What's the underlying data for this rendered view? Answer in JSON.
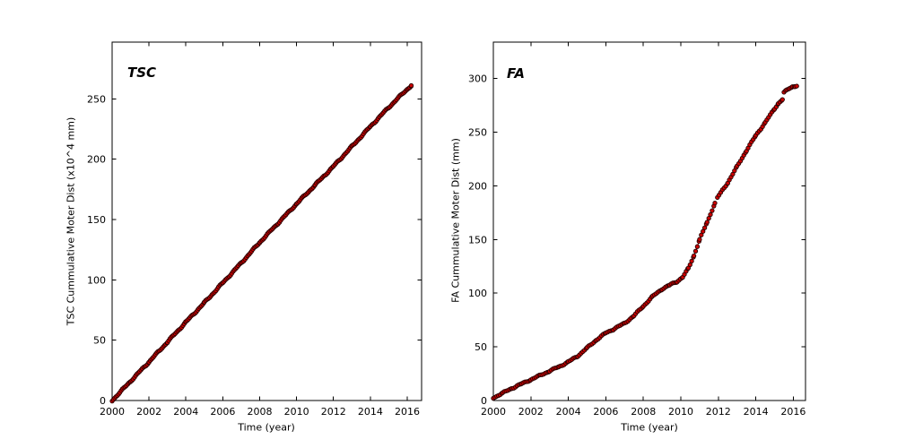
{
  "figure": {
    "background": "#ffffff",
    "text_color": "#000000"
  },
  "chart_data": [
    {
      "id": "tsc",
      "type": "scatter",
      "title": "TSC",
      "xlabel": "Time (year)",
      "ylabel": "TSC Cummulative Moter Dist (x10^4 mm)",
      "xlim": [
        2000,
        2016.78
      ],
      "ylim": [
        0,
        297
      ],
      "xticks": [
        2000,
        2002,
        2004,
        2006,
        2008,
        2010,
        2012,
        2014,
        2016
      ],
      "yticks": [
        0,
        50,
        100,
        150,
        200,
        250
      ],
      "grid": false,
      "legend": null,
      "marker": {
        "fill": "#cc0000",
        "edge": "#260000",
        "line": "#aa0000",
        "radius": 2.2
      },
      "point_spacing_years": 0.07,
      "wiggle_amplitude": 0.75,
      "segments": [
        [
          [
            2000,
            0
          ],
          [
            2001,
            16
          ],
          [
            2002,
            32
          ],
          [
            2003,
            48.5
          ],
          [
            2004,
            65
          ],
          [
            2005,
            81
          ],
          [
            2006,
            97.5
          ],
          [
            2007,
            114
          ],
          [
            2008,
            131
          ],
          [
            2009,
            147
          ],
          [
            2010,
            163
          ],
          [
            2011,
            178.5
          ],
          [
            2012,
            194
          ],
          [
            2013,
            210.5
          ],
          [
            2014,
            227
          ],
          [
            2015,
            243
          ],
          [
            2016,
            258
          ],
          [
            2016.22,
            261
          ]
        ]
      ]
    },
    {
      "id": "fa",
      "type": "scatter",
      "title": "FA",
      "xlabel": "Time (year)",
      "ylabel": "FA Cummulative Moter Dist (mm)",
      "xlim": [
        2000,
        2016.65
      ],
      "ylim": [
        0,
        334
      ],
      "xticks": [
        2000,
        2002,
        2004,
        2006,
        2008,
        2010,
        2012,
        2014,
        2016
      ],
      "yticks": [
        0,
        50,
        100,
        150,
        200,
        250,
        300
      ],
      "grid": false,
      "legend": null,
      "marker": {
        "fill": "#cc0000",
        "edge": "#260000",
        "line": "#aa0000",
        "radius": 2.2
      },
      "point_spacing_years": 0.09,
      "wiggle_amplitude": 0.7,
      "segments": [
        [
          [
            2000,
            2.5
          ],
          [
            2000.5,
            7
          ],
          [
            2001,
            11.5
          ],
          [
            2001.5,
            15.5
          ],
          [
            2002,
            19.5
          ],
          [
            2002.5,
            23.5
          ],
          [
            2003,
            27.5
          ],
          [
            2003.5,
            31.5
          ],
          [
            2004,
            36
          ],
          [
            2004.5,
            41.5
          ],
          [
            2005,
            49
          ],
          [
            2005.5,
            56.5
          ],
          [
            2006,
            63
          ],
          [
            2006.4,
            66.5
          ],
          [
            2007,
            72
          ],
          [
            2007.5,
            79
          ],
          [
            2008,
            88
          ],
          [
            2008.5,
            97
          ],
          [
            2009,
            104
          ],
          [
            2009.4,
            107.5
          ],
          [
            2009.8,
            111
          ],
          [
            2010.1,
            115
          ],
          [
            2010.4,
            123
          ],
          [
            2010.7,
            135
          ],
          [
            2011,
            150
          ],
          [
            2011.4,
            166
          ],
          [
            2011.82,
            184
          ]
        ],
        [
          [
            2011.95,
            189
          ],
          [
            2012.5,
            203
          ],
          [
            2013,
            218
          ],
          [
            2013.5,
            233
          ],
          [
            2014,
            247
          ],
          [
            2014.5,
            259
          ],
          [
            2015,
            272
          ],
          [
            2015.2,
            277
          ],
          [
            2015.42,
            280.5
          ]
        ],
        [
          [
            2015.5,
            287
          ],
          [
            2015.65,
            289
          ],
          [
            2015.8,
            291
          ],
          [
            2015.95,
            292.5
          ],
          [
            2016.1,
            293
          ],
          [
            2016.18,
            293
          ]
        ]
      ]
    }
  ]
}
